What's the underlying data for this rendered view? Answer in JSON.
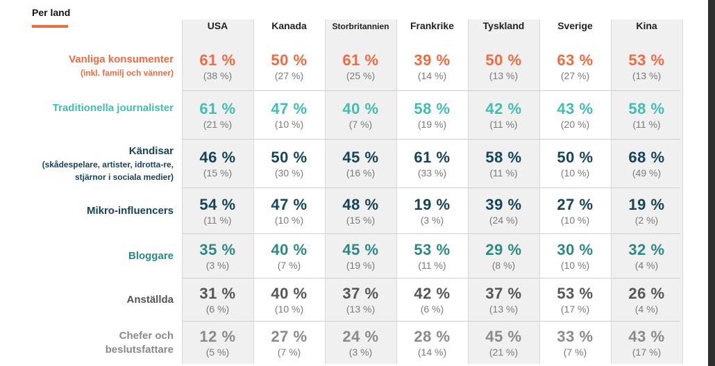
{
  "section_title": "Per land",
  "colors": {
    "accent_orange": "#f26a3d",
    "teal_light": "#3ebfb0",
    "navy": "#14445a",
    "teal_dark": "#2a8a82",
    "gray_dark": "#555555",
    "gray_light": "#8a8a8a"
  },
  "chart_data": {
    "type": "table",
    "columns": [
      "USA",
      "Kanada",
      "Storbritannien",
      "Frankrike",
      "Tyskland",
      "Sverige",
      "Kina"
    ],
    "rows": [
      {
        "label": "Vanliga konsumenter",
        "sublabel": "(inkl. familj och vänner)",
        "color": "#f26a3d",
        "values": [
          "61 %",
          "50 %",
          "61 %",
          "39 %",
          "50 %",
          "63 %",
          "53 %"
        ],
        "previous": [
          "(38 %)",
          "(27 %)",
          "(25 %)",
          "(14 %)",
          "(13 %)",
          "(27 %)",
          "(13 %)"
        ]
      },
      {
        "label": "Traditionella journalister",
        "sublabel": "",
        "color": "#3ebfb0",
        "values": [
          "61 %",
          "47 %",
          "40 %",
          "58 %",
          "42 %",
          "43 %",
          "58 %"
        ],
        "previous": [
          "(21 %)",
          "(10 %)",
          "(7 %)",
          "(19 %)",
          "(11 %)",
          "(20 %)",
          "(11 %)"
        ]
      },
      {
        "label": "Kändisar",
        "sublabel": "(skådespelare, artister, idrotta-re, stjärnor i sociala medier)",
        "color": "#14445a",
        "values": [
          "46 %",
          "50 %",
          "45 %",
          "61 %",
          "58 %",
          "50 %",
          "68 %"
        ],
        "previous": [
          "(15 %)",
          "(30 %)",
          "(16 %)",
          "(33 %)",
          "(11 %)",
          "(10 %)",
          "(49 %)"
        ]
      },
      {
        "label": "Mikro-influencers",
        "sublabel": "",
        "color": "#14445a",
        "values": [
          "54 %",
          "47 %",
          "48 %",
          "19 %",
          "39 %",
          "27 %",
          "19 %"
        ],
        "previous": [
          "(11 %)",
          "(10 %)",
          "(15 %)",
          "(3 %)",
          "(24 %)",
          "(10 %)",
          "(2 %)"
        ]
      },
      {
        "label": "Bloggare",
        "sublabel": "",
        "color": "#2a8a82",
        "values": [
          "35 %",
          "40 %",
          "45 %",
          "53 %",
          "29 %",
          "30 %",
          "32 %"
        ],
        "previous": [
          "(3 %)",
          "(7 %)",
          "(19 %)",
          "(11 %)",
          "(8 %)",
          "(10 %)",
          "(4 %)"
        ]
      },
      {
        "label": "Anställda",
        "sublabel": "",
        "color": "#555555",
        "values": [
          "31 %",
          "40 %",
          "37 %",
          "42 %",
          "37 %",
          "53 %",
          "26 %"
        ],
        "previous": [
          "(6 %)",
          "(10 %)",
          "(13 %)",
          "(6 %)",
          "(13 %)",
          "(17 %)",
          "(4 %)"
        ]
      },
      {
        "label": "Chefer och beslutsfattare",
        "sublabel": "",
        "color": "#8a8a8a",
        "values": [
          "12 %",
          "27 %",
          "24 %",
          "28 %",
          "45 %",
          "33 %",
          "43 %"
        ],
        "previous": [
          "(5 %)",
          "(7 %)",
          "(3 %)",
          "(14 %)",
          "(21 %)",
          "(7 %)",
          "(17 %)"
        ]
      }
    ]
  }
}
